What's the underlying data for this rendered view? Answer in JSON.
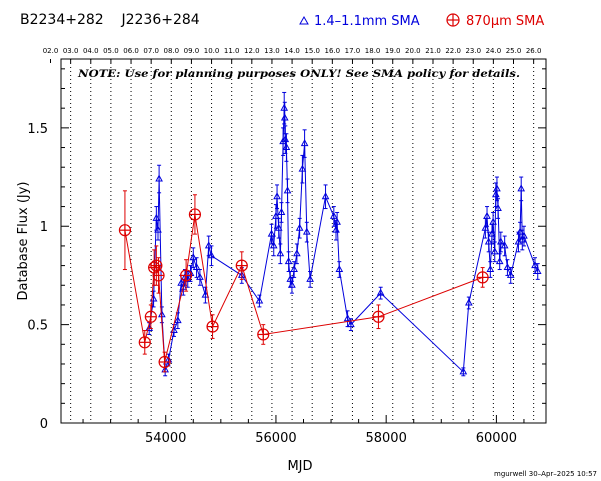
{
  "header": {
    "source_names": "B2234+282    J2236+284",
    "legend_blue": "1.4–1.1mm SMA",
    "legend_red": "870μm SMA"
  },
  "note": "NOTE: Use for planning purposes ONLY! See SMA policy for details.",
  "footer": "mgurwell 30–Apr–2025 10:57",
  "chart_data": {
    "type": "scatter",
    "xlabel": "MJD",
    "ylabel": "Database Flux (Jy)",
    "xlim": [
      52100,
      60900
    ],
    "ylim": [
      0,
      1.85
    ],
    "x_ticks": [
      54000,
      56000,
      58000,
      60000
    ],
    "y_ticks": [
      0,
      0.5,
      1,
      1.5
    ],
    "y_tick_labels": [
      "0",
      "0.5",
      "1",
      "1.5"
    ],
    "grid": "vertical dotted lines at year boundaries",
    "top_axis_labels": [
      "02.0",
      "03.0",
      "04.0",
      "05.0",
      "06.0",
      "07.0",
      "08.0",
      "09.0",
      "10.0",
      "11.0",
      "12.0",
      "13.0",
      "14.0",
      "15.0",
      "16.0",
      "17.0",
      "18.0",
      "19.0",
      "20.0",
      "21.0",
      "22.0",
      "23.0",
      "24.0",
      "25.0",
      "26.0"
    ],
    "year_lines_mjd": [
      52275,
      52640,
      53005,
      53371,
      53736,
      54101,
      54466,
      54832,
      55197,
      55562,
      55927,
      56293,
      56658,
      57023,
      57388,
      57754,
      58119,
      58484,
      58849,
      59215,
      59580,
      59945,
      60310,
      60676
    ],
    "colors": {
      "blue_series": "#0000dd",
      "red_series": "#dd0000",
      "axis": "#000000"
    },
    "series": [
      {
        "name": "1.4–1.1mm SMA",
        "marker": "triangle",
        "points": [
          [
            53700,
            0.48,
            0.03
          ],
          [
            53780,
            0.63,
            0.04
          ],
          [
            53830,
            1.04,
            0.06
          ],
          [
            53860,
            0.98,
            0.05
          ],
          [
            53880,
            1.24,
            0.07
          ],
          [
            53930,
            0.55,
            0.04
          ],
          [
            53990,
            0.27,
            0.03
          ],
          [
            54050,
            0.32,
            0.03
          ],
          [
            54150,
            0.47,
            0.03
          ],
          [
            54220,
            0.52,
            0.04
          ],
          [
            54280,
            0.71,
            0.04
          ],
          [
            54320,
            0.69,
            0.04
          ],
          [
            54350,
            0.74,
            0.04
          ],
          [
            54400,
            0.73,
            0.04
          ],
          [
            54450,
            0.76,
            0.04
          ],
          [
            54500,
            0.84,
            0.05
          ],
          [
            54560,
            0.79,
            0.05
          ],
          [
            54620,
            0.74,
            0.04
          ],
          [
            54720,
            0.65,
            0.04
          ],
          [
            54780,
            0.9,
            0.05
          ],
          [
            54830,
            0.85,
            0.05
          ],
          [
            55380,
            0.75,
            0.04
          ],
          [
            55700,
            0.62,
            0.03
          ],
          [
            55920,
            0.96,
            0.05
          ],
          [
            55960,
            0.9,
            0.05
          ],
          [
            56000,
            1.05,
            0.06
          ],
          [
            56020,
            1.15,
            0.06
          ],
          [
            56050,
            0.99,
            0.05
          ],
          [
            56080,
            0.86,
            0.05
          ],
          [
            56100,
            1.07,
            0.05
          ],
          [
            56130,
            1.43,
            0.07
          ],
          [
            56150,
            1.6,
            0.08
          ],
          [
            56160,
            1.55,
            0.08
          ],
          [
            56170,
            1.44,
            0.07
          ],
          [
            56190,
            1.4,
            0.07
          ],
          [
            56210,
            1.18,
            0.06
          ],
          [
            56230,
            0.82,
            0.05
          ],
          [
            56260,
            0.73,
            0.04
          ],
          [
            56290,
            0.7,
            0.04
          ],
          [
            56330,
            0.78,
            0.04
          ],
          [
            56380,
            0.86,
            0.05
          ],
          [
            56430,
            0.99,
            0.05
          ],
          [
            56480,
            1.29,
            0.07
          ],
          [
            56520,
            1.42,
            0.07
          ],
          [
            56560,
            0.97,
            0.05
          ],
          [
            56620,
            0.73,
            0.04
          ],
          [
            56900,
            1.15,
            0.06
          ],
          [
            57050,
            1.05,
            0.05
          ],
          [
            57090,
            0.98,
            0.05
          ],
          [
            57110,
            1.02,
            0.05
          ],
          [
            57150,
            0.78,
            0.04
          ],
          [
            57300,
            0.53,
            0.04
          ],
          [
            57360,
            0.5,
            0.03
          ],
          [
            57900,
            0.66,
            0.03
          ],
          [
            59400,
            0.26,
            0.02
          ],
          [
            59500,
            0.61,
            0.03
          ],
          [
            59800,
            0.99,
            0.05
          ],
          [
            59830,
            1.05,
            0.05
          ],
          [
            59860,
            0.92,
            0.05
          ],
          [
            59890,
            0.78,
            0.04
          ],
          [
            59920,
            0.96,
            0.05
          ],
          [
            59940,
            1.02,
            0.05
          ],
          [
            59970,
            0.87,
            0.05
          ],
          [
            59990,
            1.16,
            0.06
          ],
          [
            60010,
            1.19,
            0.06
          ],
          [
            60030,
            1.09,
            0.05
          ],
          [
            60060,
            0.82,
            0.04
          ],
          [
            60080,
            0.92,
            0.05
          ],
          [
            60150,
            0.9,
            0.05
          ],
          [
            60200,
            0.79,
            0.04
          ],
          [
            60260,
            0.75,
            0.04
          ],
          [
            60400,
            0.92,
            0.05
          ],
          [
            60430,
            0.97,
            0.05
          ],
          [
            60470,
            0.93,
            0.05
          ],
          [
            60450,
            1.19,
            0.06
          ],
          [
            60500,
            0.95,
            0.05
          ],
          [
            60700,
            0.8,
            0.04
          ],
          [
            60750,
            0.77,
            0.04
          ]
        ]
      },
      {
        "name": "870μm SMA",
        "marker": "circled-plus",
        "points": [
          [
            53260,
            0.98,
            0.2
          ],
          [
            53620,
            0.41,
            0.06
          ],
          [
            53730,
            0.54,
            0.06
          ],
          [
            53790,
            0.79,
            0.09
          ],
          [
            53830,
            0.8,
            0.1
          ],
          [
            53870,
            0.75,
            0.09
          ],
          [
            53980,
            0.31,
            0.05
          ],
          [
            54370,
            0.75,
            0.08
          ],
          [
            54530,
            1.06,
            0.1
          ],
          [
            54850,
            0.49,
            0.06
          ],
          [
            55380,
            0.8,
            0.07
          ],
          [
            55770,
            0.45,
            0.05
          ],
          [
            57860,
            0.54,
            0.06
          ],
          [
            59750,
            0.74,
            0.05
          ]
        ]
      }
    ]
  }
}
